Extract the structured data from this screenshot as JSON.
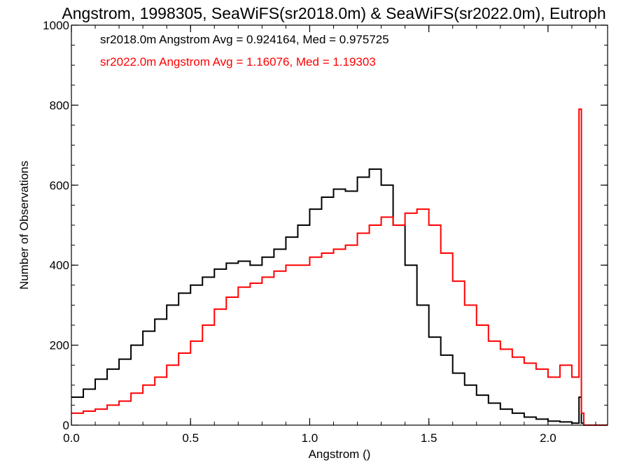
{
  "chart_data": {
    "type": "line",
    "title": "Angstrom, 1998305, SeaWiFS(sr2018.0m) & SeaWiFS(sr2022.0m), Eutroph",
    "xlabel": "Angstrom ()",
    "ylabel": "Number of Observations",
    "xlim": [
      0.0,
      2.25
    ],
    "ylim": [
      0,
      1000
    ],
    "xticks": [
      0.0,
      0.5,
      1.0,
      1.5,
      2.0
    ],
    "xtick_labels": [
      "0.0",
      "0.5",
      "1.0",
      "1.5",
      "2.0"
    ],
    "yticks": [
      0,
      200,
      400,
      600,
      800,
      1000
    ],
    "ytick_labels": [
      "0",
      "200",
      "400",
      "600",
      "800",
      "1000"
    ],
    "step_style": "histogram",
    "grid": false,
    "annotations": [
      "sr2018.0m Angstrom Avg = 0.924164, Med = 0.975725",
      "sr2022.0m Angstrom Avg = 1.16076, Med = 1.19303"
    ],
    "series": [
      {
        "name": "sr2018.0m",
        "color": "#000000",
        "x": [
          0.0,
          0.05,
          0.1,
          0.15,
          0.2,
          0.25,
          0.3,
          0.35,
          0.4,
          0.45,
          0.5,
          0.55,
          0.6,
          0.65,
          0.7,
          0.75,
          0.8,
          0.85,
          0.9,
          0.95,
          1.0,
          1.05,
          1.1,
          1.15,
          1.2,
          1.25,
          1.3,
          1.35,
          1.4,
          1.45,
          1.5,
          1.55,
          1.6,
          1.65,
          1.7,
          1.75,
          1.8,
          1.85,
          1.9,
          1.95,
          2.0,
          2.05,
          2.1,
          2.13,
          2.14,
          2.15,
          2.2,
          2.25
        ],
        "y": [
          70,
          90,
          115,
          140,
          165,
          200,
          235,
          265,
          300,
          330,
          350,
          370,
          390,
          405,
          410,
          400,
          420,
          440,
          470,
          500,
          540,
          570,
          590,
          585,
          620,
          640,
          600,
          500,
          400,
          300,
          220,
          175,
          130,
          100,
          75,
          55,
          40,
          30,
          20,
          15,
          10,
          8,
          5,
          70,
          5,
          0,
          0,
          0
        ]
      },
      {
        "name": "sr2022.0m",
        "color": "#ff0000",
        "x": [
          0.0,
          0.05,
          0.1,
          0.15,
          0.2,
          0.25,
          0.3,
          0.35,
          0.4,
          0.45,
          0.5,
          0.55,
          0.6,
          0.65,
          0.7,
          0.75,
          0.8,
          0.85,
          0.9,
          0.95,
          1.0,
          1.05,
          1.1,
          1.15,
          1.2,
          1.25,
          1.3,
          1.35,
          1.4,
          1.45,
          1.5,
          1.55,
          1.6,
          1.65,
          1.7,
          1.75,
          1.8,
          1.85,
          1.9,
          1.95,
          2.0,
          2.05,
          2.1,
          2.13,
          2.14,
          2.15,
          2.2,
          2.25
        ],
        "y": [
          30,
          35,
          40,
          50,
          60,
          80,
          100,
          120,
          150,
          180,
          210,
          250,
          290,
          320,
          345,
          355,
          370,
          385,
          400,
          400,
          420,
          430,
          440,
          450,
          480,
          500,
          520,
          500,
          530,
          540,
          500,
          430,
          360,
          300,
          250,
          210,
          190,
          170,
          155,
          140,
          120,
          150,
          120,
          790,
          30,
          0,
          0,
          0
        ]
      }
    ]
  }
}
